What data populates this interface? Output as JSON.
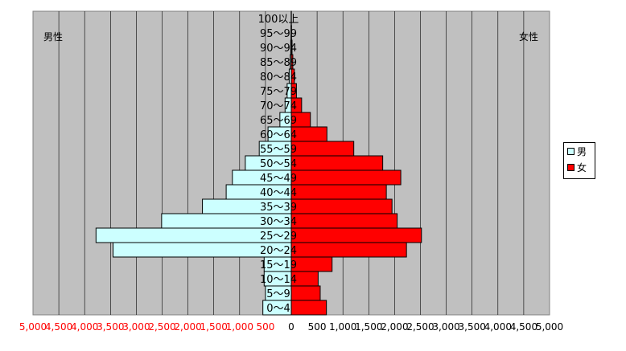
{
  "chart_data": {
    "type": "bar",
    "orientation": "horizontal",
    "layout": "population-pyramid",
    "categories": [
      "0～4",
      "5～9",
      "10～14",
      "15～19",
      "20～24",
      "25～29",
      "30～34",
      "35～39",
      "40～44",
      "45～49",
      "50～54",
      "55～59",
      "60～64",
      "65～69",
      "70～74",
      "75～79",
      "80～84",
      "85～89",
      "90～94",
      "95～99",
      "100以上"
    ],
    "series": [
      {
        "name": "男",
        "color": "#ccffff",
        "values": [
          550,
          500,
          525,
          525,
          3450,
          3780,
          2510,
          1720,
          1260,
          1140,
          890,
          620,
          450,
          220,
          120,
          80,
          40,
          20,
          10,
          5,
          2
        ]
      },
      {
        "name": "女",
        "color": "#ff0000",
        "values": [
          680,
          560,
          520,
          790,
          2230,
          2520,
          2050,
          1950,
          1840,
          2120,
          1770,
          1210,
          690,
          370,
          200,
          100,
          60,
          30,
          15,
          5,
          2
        ]
      }
    ],
    "side_labels": {
      "left": "男性",
      "right": "女性"
    },
    "left_axis": {
      "ticks": [
        "5,000",
        "4,500",
        "4,000",
        "3,500",
        "3,000",
        "2,500",
        "2,000",
        "1,500",
        "1,000",
        "500"
      ],
      "color": "#ff0000"
    },
    "right_axis": {
      "ticks": [
        "0",
        "500",
        "1,000",
        "1,500",
        "2,000",
        "2,500",
        "3,000",
        "3,500",
        "4,000",
        "4,500",
        "5,000"
      ],
      "color": "#000000"
    },
    "range": [
      0,
      5000
    ],
    "grid": true,
    "plot_background": "#c0c0c0",
    "legend_position": "right"
  }
}
